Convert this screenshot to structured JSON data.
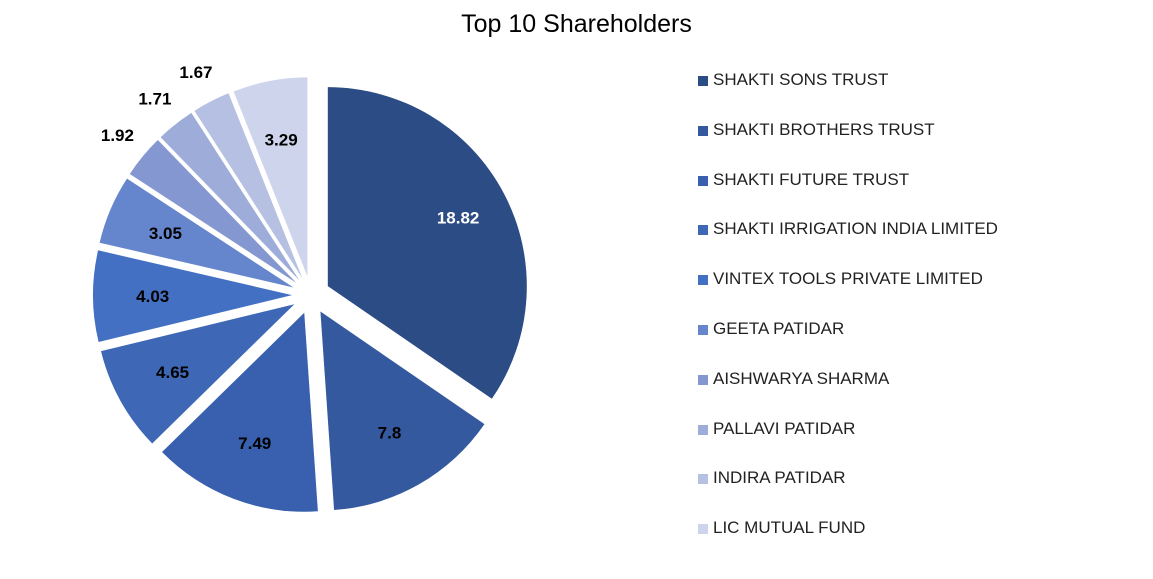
{
  "chart_data": {
    "type": "pie",
    "title": "Top 10 Shareholders",
    "legend_position": "right",
    "series": [
      {
        "name": "SHAKTI SONS TRUST",
        "value": 18.82,
        "color": "#2C4C85",
        "label_color": "#FFFFFF"
      },
      {
        "name": "SHAKTI BROTHERS TRUST",
        "value": 7.8,
        "color": "#34599E",
        "label_color": "#000000"
      },
      {
        "name": "SHAKTI FUTURE TRUST",
        "value": 7.49,
        "color": "#3860AE",
        "label_color": "#000000"
      },
      {
        "name": "SHAKTI IRRIGATION INDIA LIMITED",
        "value": 4.65,
        "color": "#3E68B6",
        "label_color": "#000000"
      },
      {
        "name": "VINTEX TOOLS PRIVATE LIMITED",
        "value": 4.03,
        "color": "#4470C4",
        "label_color": "#000000"
      },
      {
        "name": "GEETA PATIDAR",
        "value": 3.05,
        "color": "#6585CC",
        "label_color": "#000000"
      },
      {
        "name": "AISHWARYA SHARMA",
        "value": 1.92,
        "color": "#8597D1",
        "label_color": "#000000"
      },
      {
        "name": "PALLAVI PATIDAR",
        "value": 1.71,
        "color": "#9DACD9",
        "label_color": "#000000"
      },
      {
        "name": "INDIRA PATIDAR",
        "value": 1.67,
        "color": "#B5C0E2",
        "label_color": "#000000"
      },
      {
        "name": "LIC MUTUAL FUND",
        "value": 3.29,
        "color": "#CDD4EB",
        "label_color": "#000000"
      }
    ]
  }
}
